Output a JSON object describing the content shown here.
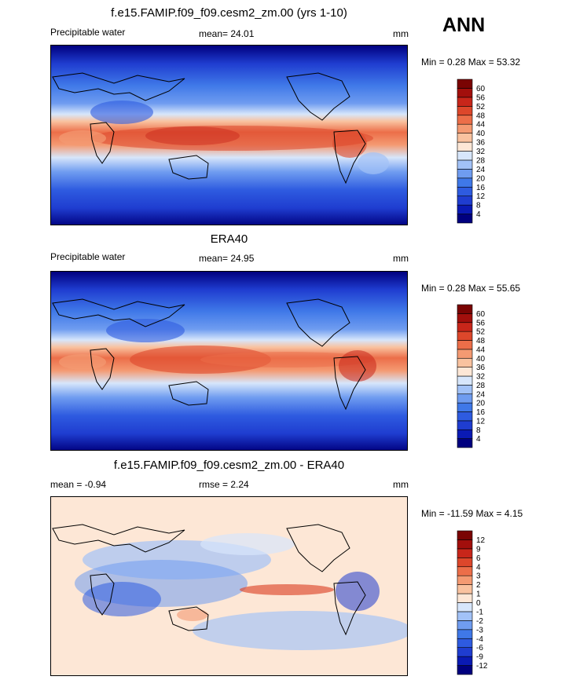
{
  "page": {
    "season": "ANN"
  },
  "panels": [
    {
      "title": "f.e15.FAMIP.f09_f09.cesm2_zm.00 (yrs 1-10)",
      "left_label": "Precipitable water",
      "center_label": "mean=  24.01",
      "right_label": "mm",
      "minmax": "Min =   0.28 Max =  53.32",
      "levels": [
        "4",
        "8",
        "12",
        "16",
        "20",
        "24",
        "28",
        "32",
        "36",
        "40",
        "44",
        "48",
        "52",
        "56",
        "60"
      ],
      "colors": [
        "#00007f",
        "#0a1ab4",
        "#1f3dd0",
        "#2e5be0",
        "#3f78e8",
        "#6f9cf0",
        "#a2c2f7",
        "#d7e6fb",
        "#fde7d6",
        "#f9c29f",
        "#f49a72",
        "#ec6e49",
        "#dd472b",
        "#c8261a",
        "#a20f0c",
        "#7a0403"
      ]
    },
    {
      "title": "ERA40",
      "left_label": "Precipitable water",
      "center_label": "mean=  24.95",
      "right_label": "mm",
      "minmax": "Min =   0.28 Max =  55.65",
      "levels": [
        "4",
        "8",
        "12",
        "16",
        "20",
        "24",
        "28",
        "32",
        "36",
        "40",
        "44",
        "48",
        "52",
        "56",
        "60"
      ],
      "colors": [
        "#00007f",
        "#0a1ab4",
        "#1f3dd0",
        "#2e5be0",
        "#3f78e8",
        "#6f9cf0",
        "#a2c2f7",
        "#d7e6fb",
        "#fde7d6",
        "#f9c29f",
        "#f49a72",
        "#ec6e49",
        "#dd472b",
        "#c8261a",
        "#a20f0c",
        "#7a0403"
      ]
    },
    {
      "title": "f.e15.FAMIP.f09_f09.cesm2_zm.00 - ERA40",
      "left_label": "mean =  -0.94",
      "center_label": "rmse =   2.24",
      "right_label": "mm",
      "minmax": "Min = -11.59 Max =   4.15",
      "levels": [
        "-12",
        "-9",
        "-6",
        "-4",
        "-3",
        "-2",
        "-1",
        "0",
        "1",
        "2",
        "3",
        "4",
        "6",
        "9",
        "12"
      ],
      "colors": [
        "#00007f",
        "#0a1ab4",
        "#1f3dd0",
        "#2e5be0",
        "#3f78e8",
        "#6f9cf0",
        "#a2c2f7",
        "#d7e6fb",
        "#fde7d6",
        "#f9c29f",
        "#f49a72",
        "#ec6e49",
        "#dd472b",
        "#c8261a",
        "#a20f0c",
        "#7a0403"
      ]
    }
  ],
  "chart_data": [
    {
      "type": "heatmap",
      "title": "f.e15.FAMIP.f09_f09.cesm2_zm.00 (yrs 1-10)",
      "variable": "Precipitable water",
      "units": "mm",
      "mean": 24.01,
      "min": 0.28,
      "max": 53.32,
      "contour_levels": [
        4,
        8,
        12,
        16,
        20,
        24,
        28,
        32,
        36,
        40,
        44,
        48,
        52,
        56,
        60
      ]
    },
    {
      "type": "heatmap",
      "title": "ERA40",
      "variable": "Precipitable water",
      "units": "mm",
      "mean": 24.95,
      "min": 0.28,
      "max": 55.65,
      "contour_levels": [
        4,
        8,
        12,
        16,
        20,
        24,
        28,
        32,
        36,
        40,
        44,
        48,
        52,
        56,
        60
      ]
    },
    {
      "type": "heatmap",
      "title": "f.e15.FAMIP.f09_f09.cesm2_zm.00 - ERA40",
      "units": "mm",
      "mean": -0.94,
      "rmse": 2.24,
      "min": -11.59,
      "max": 4.15,
      "contour_levels": [
        -12,
        -9,
        -6,
        -4,
        -3,
        -2,
        -1,
        0,
        1,
        2,
        3,
        4,
        6,
        9,
        12
      ]
    }
  ]
}
